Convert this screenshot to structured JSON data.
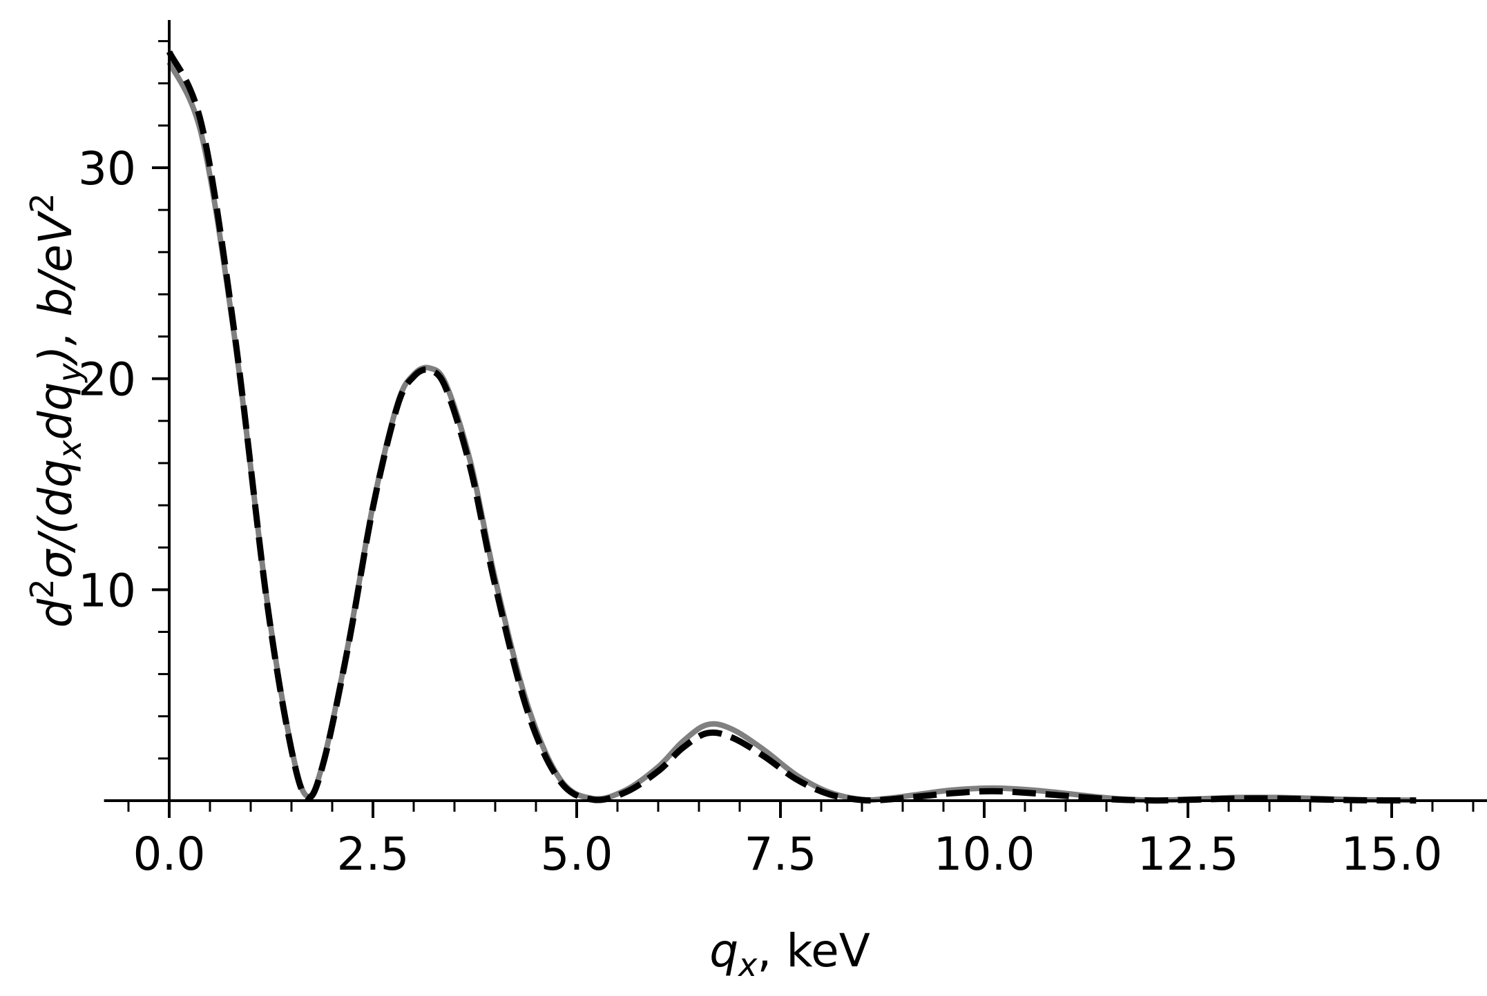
{
  "chart_data": {
    "type": "line",
    "title": "",
    "xlabel": {
      "base": "q",
      "sub": "x",
      "rest": ", keV"
    },
    "ylabel": {
      "parts": [
        {
          "t": "d",
          "i": true
        },
        {
          "t": "2",
          "sup": true
        },
        {
          "t": "σ/(",
          "i": true
        },
        {
          "t": "dq",
          "i": true
        },
        {
          "t": "x",
          "sub": true,
          "i": true
        },
        {
          "t": "dq",
          "i": true
        },
        {
          "t": "y",
          "sub": true,
          "i": true
        },
        {
          "t": "),  ",
          "i": true
        },
        {
          "t": "b/eV",
          "i": true
        },
        {
          "t": "2",
          "sup": true
        }
      ]
    },
    "xlim": [
      -0.8,
      16.2
    ],
    "ylim": [
      0,
      37
    ],
    "xticks": {
      "major": [
        0.0,
        2.5,
        5.0,
        7.5,
        10.0,
        12.5,
        15.0
      ],
      "labels": [
        "0.0",
        "2.5",
        "5.0",
        "7.5",
        "10.0",
        "12.5",
        "15.0"
      ],
      "minor_step": 0.5
    },
    "yticks": {
      "major": [
        10,
        20,
        30
      ],
      "labels": [
        "10",
        "20",
        "30"
      ],
      "minor_step": 2
    },
    "grid": false,
    "legend": "none",
    "series": [
      {
        "style": "solid",
        "color": "#808080",
        "x": [
          0.0,
          0.4,
          0.8,
          1.2,
          1.5,
          1.7,
          1.9,
          2.2,
          2.5,
          2.8,
          3.0,
          3.2,
          3.4,
          3.7,
          4.0,
          4.4,
          4.8,
          5.2,
          5.6,
          6.0,
          6.3,
          6.6,
          6.9,
          7.3,
          7.7,
          8.1,
          8.5,
          8.8,
          9.2,
          9.6,
          10.1,
          10.6,
          11.1,
          11.6,
          12.1,
          12.6,
          13.1,
          13.6,
          14.1,
          14.6,
          15.3
        ],
        "y": [
          35.0,
          31.5,
          22.0,
          9.5,
          2.5,
          0.2,
          2.0,
          7.5,
          14.0,
          18.8,
          20.2,
          20.5,
          19.7,
          16.0,
          10.5,
          4.5,
          1.0,
          0.1,
          0.5,
          1.6,
          2.8,
          3.6,
          3.4,
          2.4,
          1.2,
          0.4,
          0.05,
          0.1,
          0.3,
          0.5,
          0.6,
          0.5,
          0.3,
          0.1,
          0.02,
          0.08,
          0.15,
          0.15,
          0.1,
          0.04,
          0.02
        ]
      },
      {
        "style": "dashed",
        "color": "#000000",
        "x": [
          0.0,
          0.4,
          0.8,
          1.2,
          1.5,
          1.7,
          1.9,
          2.2,
          2.5,
          2.8,
          3.0,
          3.2,
          3.4,
          3.7,
          4.0,
          4.4,
          4.8,
          5.2,
          5.6,
          6.0,
          6.3,
          6.6,
          6.9,
          7.3,
          7.7,
          8.1,
          8.5,
          8.8,
          9.2,
          9.6,
          10.1,
          10.6,
          11.1,
          11.6,
          12.1,
          12.6,
          13.1,
          13.6,
          14.1,
          14.6,
          15.3
        ],
        "y": [
          35.5,
          32.0,
          22.2,
          9.4,
          2.4,
          0.15,
          1.9,
          7.4,
          13.9,
          18.7,
          20.1,
          20.4,
          19.5,
          15.7,
          10.2,
          4.2,
          0.9,
          0.05,
          0.4,
          1.4,
          2.5,
          3.2,
          3.0,
          2.1,
          1.0,
          0.3,
          0.03,
          0.05,
          0.2,
          0.35,
          0.45,
          0.35,
          0.2,
          0.06,
          0.01,
          0.05,
          0.1,
          0.1,
          0.06,
          0.02,
          0.01
        ]
      }
    ]
  }
}
